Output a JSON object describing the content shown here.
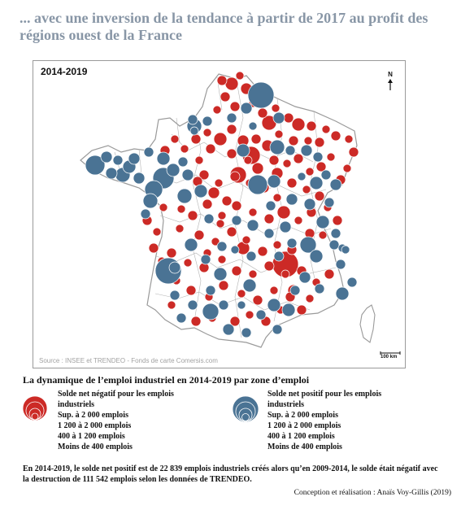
{
  "headline": "... avec une inversion de la tendance à partir de 2017 au profit des régions ouest de la France",
  "map": {
    "period": "2014-2019",
    "north_label": "N",
    "scale_label": "100 km",
    "source": "Source : INSEE et TRENDEO - Fonds de carte Comersis.com",
    "colors": {
      "negative": "#cc2a26",
      "positive": "#4a7394",
      "border": "#9a9a9a"
    }
  },
  "legend": {
    "title": "La dynamique de l’emploi industriel en 2014-2019 par zone d’emploi",
    "negative": {
      "description": "Solde net négatif pour les emplois industriels",
      "classes": [
        "Sup. à 2 000 emplois",
        "1 200 à 2 000 emplois",
        "400 à 1 200 emplois",
        "Moins de 400 emplois"
      ]
    },
    "positive": {
      "description": "Solde net positif pour les emplois industriels",
      "classes": [
        "Sup. à 2 000 emplois",
        "1 200 à 2 000 emplois",
        "400 à 1 200 emplois",
        "Moins de 400 emplois"
      ]
    }
  },
  "note": "En 2014-2019, le solde net positif est de 22 839 emplois industriels créés alors qu’en 2009-2014, le solde était négatif avec la destruction de 111 542 emplois selon les données de TRENDEO.",
  "credit": "Conception et réalisation : Anaïs Voy-Gillis (2019)"
}
